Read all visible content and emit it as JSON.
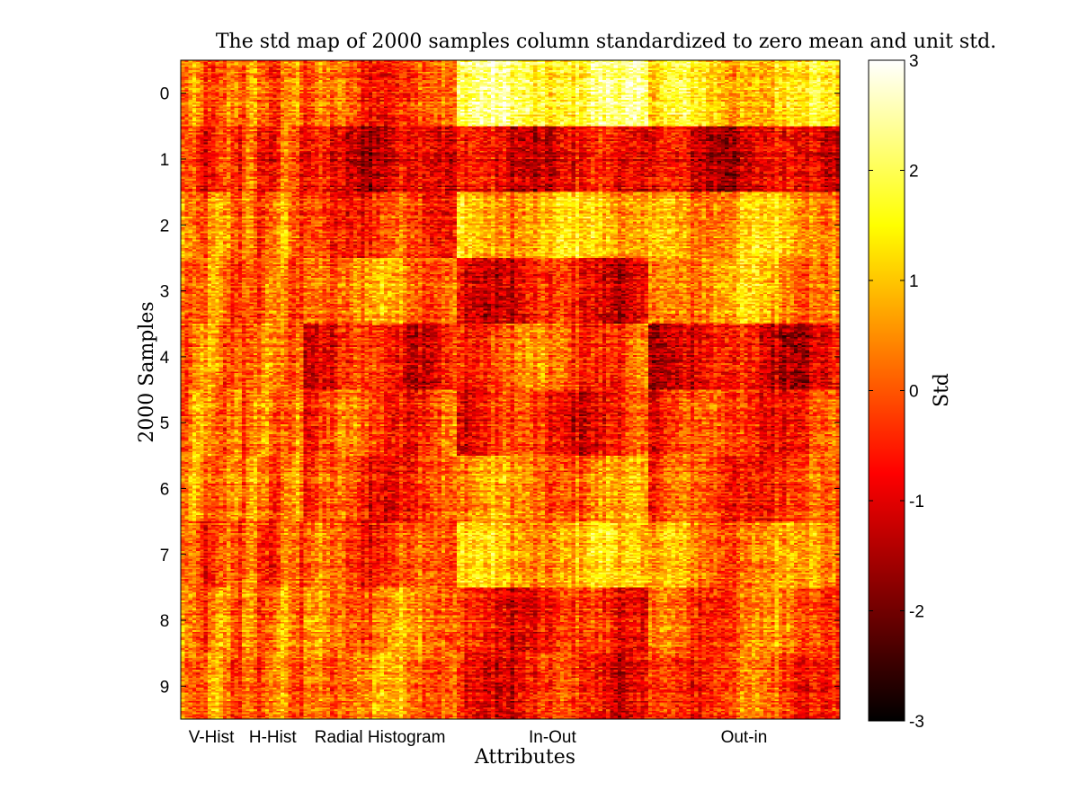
{
  "chart_data": {
    "type": "heatmap",
    "title": "The std map of 2000 samples column standardized to zero mean and unit std.",
    "xlabel": "Attributes",
    "ylabel": "2000 Samples",
    "x_groups": [
      {
        "label": "V-Hist",
        "start": 0,
        "end": 16
      },
      {
        "label": "H-Hist",
        "start": 16,
        "end": 32
      },
      {
        "label": "Radial Histogram",
        "start": 32,
        "end": 72
      },
      {
        "label": "In-Out",
        "start": 72,
        "end": 122
      },
      {
        "label": "Out-in",
        "start": 122,
        "end": 172
      }
    ],
    "x_range": [
      0,
      172
    ],
    "y_ticks": [
      "0",
      "1",
      "2",
      "3",
      "4",
      "5",
      "6",
      "7",
      "8",
      "9"
    ],
    "y_range": [
      -0.5,
      9.5
    ],
    "colorbar": {
      "label": "Std",
      "range": [
        -3,
        3
      ],
      "ticks": [
        "3",
        "2",
        "1",
        "0",
        "-1",
        "-2",
        "-3"
      ],
      "colormap": "hot"
    },
    "class_mean_std": {
      "classes": [
        "0",
        "1",
        "2",
        "3",
        "4",
        "5",
        "6",
        "7",
        "8",
        "9"
      ],
      "groups": [
        "V-Hist",
        "H-Hist",
        "Radial Histogram",
        "In-Out",
        "Out-in"
      ],
      "values": [
        [
          0.0,
          0.1,
          -0.2,
          1.9,
          1.2
        ],
        [
          -0.6,
          -0.4,
          -1.1,
          -1.0,
          -1.1
        ],
        [
          0.3,
          0.2,
          -0.3,
          0.9,
          0.8
        ],
        [
          0.2,
          0.2,
          0.5,
          -0.8,
          0.7
        ],
        [
          0.3,
          0.3,
          -0.6,
          0.0,
          -0.9
        ],
        [
          0.3,
          0.2,
          -0.2,
          -0.6,
          -0.3
        ],
        [
          0.2,
          0.2,
          -0.4,
          0.3,
          -0.3
        ],
        [
          -0.3,
          -0.2,
          -0.2,
          0.8,
          0.4
        ],
        [
          0.2,
          0.3,
          0.4,
          -0.6,
          0.1
        ],
        [
          0.2,
          0.2,
          0.4,
          -0.7,
          -0.2
        ]
      ]
    }
  }
}
